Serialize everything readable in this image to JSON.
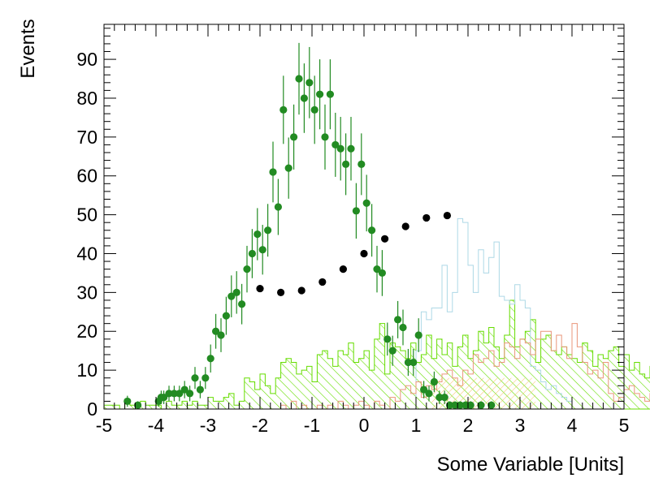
{
  "chart_data": {
    "type": "histogram",
    "xlabel": "Some Variable [Units]",
    "ylabel": "Events",
    "xlim": [
      -5,
      5
    ],
    "ylim": [
      0,
      99
    ],
    "x_ticks": [
      "-5",
      "-4",
      "-3",
      "-2",
      "-1",
      "0",
      "1",
      "2",
      "3",
      "4",
      "5"
    ],
    "y_ticks": [
      "0",
      "10",
      "20",
      "30",
      "40",
      "50",
      "60",
      "70",
      "80",
      "90"
    ],
    "colors": {
      "green_fill": "#66dd00",
      "lightblue_line": "#add8e6",
      "salmon_line": "#e9967a",
      "green_points": "#228b22",
      "black_points": "#000000",
      "orange_fill": "#f5a623"
    },
    "series": [
      {
        "style": "step-hatched",
        "color": "#66dd00",
        "bin_width": 0.1,
        "x_start": -5.0,
        "values": [
          1,
          1,
          1,
          0,
          2,
          1,
          1,
          2,
          1,
          1,
          1,
          0,
          2,
          1,
          1,
          2,
          1,
          2,
          1,
          1,
          3,
          2,
          2,
          3,
          4,
          1,
          2,
          8,
          7,
          5,
          9,
          6,
          4,
          8,
          12,
          13,
          12,
          9,
          10,
          11,
          7,
          14,
          15,
          13,
          11,
          15,
          14,
          17,
          12,
          13,
          15,
          10,
          18,
          22,
          9,
          17,
          16,
          15,
          13,
          17,
          12,
          14,
          19,
          13,
          18,
          14,
          17,
          11,
          16,
          19,
          13,
          15,
          20,
          17,
          21,
          16,
          13,
          19,
          28,
          16,
          18,
          20,
          23,
          12,
          18,
          19,
          15,
          14,
          16,
          14,
          13,
          12,
          17,
          15,
          11,
          14,
          13,
          15,
          16,
          11,
          14,
          10,
          12,
          9,
          8,
          11,
          7,
          6,
          9,
          8,
          10,
          7,
          8,
          6,
          8,
          7,
          9,
          5,
          7,
          6,
          4,
          5,
          3,
          6,
          4,
          5,
          3,
          2,
          4,
          3,
          2,
          1,
          3,
          2,
          1,
          2,
          3,
          1,
          1,
          1
        ]
      },
      {
        "style": "step-line",
        "color": "#add8e6",
        "bin_width": 0.1,
        "x_start": 1.0,
        "values": [
          15,
          25,
          23,
          26,
          26,
          37,
          25,
          30,
          49,
          48,
          37,
          30,
          41,
          35,
          39,
          43,
          29,
          28,
          27,
          32,
          28,
          26,
          11,
          10,
          7,
          5,
          6,
          4,
          3,
          2
        ]
      },
      {
        "style": "step-line",
        "color": "#e9967a",
        "bin_width": 0.1,
        "x_start": -2.0,
        "values": [
          0,
          0,
          0,
          0,
          1,
          0,
          2,
          0,
          1,
          0,
          0,
          1,
          0,
          1,
          0,
          2,
          1,
          0,
          1,
          2,
          1,
          0,
          2,
          1,
          0,
          3,
          2,
          5,
          6,
          4,
          7,
          3,
          6,
          5,
          7,
          9,
          10,
          8,
          6,
          10,
          9,
          14,
          12,
          13,
          15,
          11,
          12,
          17,
          16,
          13,
          18,
          17,
          14,
          18,
          20,
          20,
          15,
          19,
          16,
          13,
          22,
          16,
          12,
          9,
          10,
          8,
          12,
          4,
          2,
          3,
          5,
          6,
          4,
          3,
          2,
          4,
          3,
          2,
          1,
          0,
          1,
          0,
          0,
          0,
          0
        ]
      },
      {
        "style": "points-errorbars",
        "color": "#228b22",
        "points": [
          [
            -4.55,
            2
          ],
          [
            -4.35,
            1
          ],
          [
            -3.95,
            2
          ],
          [
            -3.9,
            3
          ],
          [
            -3.85,
            3
          ],
          [
            -3.75,
            4
          ],
          [
            -3.65,
            4
          ],
          [
            -3.55,
            4
          ],
          [
            -3.45,
            5
          ],
          [
            -3.35,
            4
          ],
          [
            -3.25,
            8
          ],
          [
            -3.15,
            5
          ],
          [
            -3.05,
            8
          ],
          [
            -2.95,
            13
          ],
          [
            -2.85,
            20
          ],
          [
            -2.75,
            19
          ],
          [
            -2.65,
            24
          ],
          [
            -2.55,
            29
          ],
          [
            -2.45,
            30
          ],
          [
            -2.35,
            27
          ],
          [
            -2.25,
            36
          ],
          [
            -2.15,
            40
          ],
          [
            -2.05,
            45
          ],
          [
            -1.95,
            41
          ],
          [
            -1.85,
            46
          ],
          [
            -1.75,
            61
          ],
          [
            -1.65,
            52
          ],
          [
            -1.55,
            77
          ],
          [
            -1.45,
            62
          ],
          [
            -1.35,
            70
          ],
          [
            -1.25,
            85
          ],
          [
            -1.15,
            80
          ],
          [
            -1.05,
            84
          ],
          [
            -0.95,
            77
          ],
          [
            -0.85,
            81
          ],
          [
            -0.75,
            70
          ],
          [
            -0.65,
            81
          ],
          [
            -0.55,
            68
          ],
          [
            -0.45,
            67
          ],
          [
            -0.35,
            63
          ],
          [
            -0.25,
            67
          ],
          [
            -0.15,
            51
          ],
          [
            -0.05,
            63
          ],
          [
            0.05,
            53
          ],
          [
            0.15,
            46
          ],
          [
            0.25,
            36
          ],
          [
            0.35,
            35
          ],
          [
            0.45,
            18
          ],
          [
            0.55,
            15
          ],
          [
            0.65,
            23
          ],
          [
            0.75,
            21
          ],
          [
            0.85,
            12
          ],
          [
            0.95,
            12
          ],
          [
            1.05,
            19
          ],
          [
            1.15,
            5
          ],
          [
            1.25,
            4
          ],
          [
            1.35,
            7
          ],
          [
            1.45,
            3
          ],
          [
            1.55,
            3
          ],
          [
            1.65,
            1
          ],
          [
            1.75,
            1
          ],
          [
            1.85,
            1
          ],
          [
            1.95,
            1
          ],
          [
            2.05,
            1
          ],
          [
            2.25,
            1
          ],
          [
            2.45,
            1
          ]
        ]
      },
      {
        "style": "points",
        "color": "#000000",
        "points": [
          [
            -2.0,
            31
          ],
          [
            -1.6,
            30
          ],
          [
            -1.2,
            30.5
          ],
          [
            -0.8,
            32.7
          ],
          [
            -0.4,
            36
          ],
          [
            0.0,
            40
          ],
          [
            0.4,
            43.8
          ],
          [
            0.8,
            47
          ],
          [
            1.2,
            49.2
          ],
          [
            1.6,
            49.8
          ]
        ]
      }
    ]
  }
}
